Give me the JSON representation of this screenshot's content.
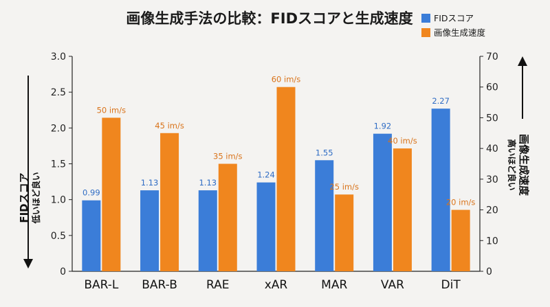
{
  "chart_data": {
    "type": "bar",
    "title": "画像生成手法の比較：FIDスコアと生成速度",
    "categories": [
      "BAR-L",
      "BAR-B",
      "RAE",
      "xAR",
      "MAR",
      "VAR",
      "DiT"
    ],
    "series": [
      {
        "name": "FIDスコア",
        "axis": "left",
        "color": "#3b7dd8",
        "values": [
          0.99,
          1.13,
          1.13,
          1.24,
          1.55,
          1.92,
          2.27
        ],
        "labels": [
          "0.99",
          "1.13",
          "1.13",
          "1.24",
          "1.55",
          "1.92",
          "2.27"
        ]
      },
      {
        "name": "画像生成速度",
        "axis": "right",
        "color": "#f0861e",
        "values": [
          50,
          45,
          35,
          60,
          25,
          40,
          20
        ],
        "labels": [
          "50 im/s",
          "45 im/s",
          "35 im/s",
          "60 im/s",
          "25 im/s",
          "40 im/s",
          "20 im/s"
        ]
      }
    ],
    "y_left": {
      "label": "FIDスコア",
      "sublabel": "低いほど良い",
      "ylim": [
        0,
        3.0
      ],
      "ticks": [
        "0",
        "0.5",
        "1.0",
        "1.5",
        "2.0",
        "2.5",
        "3.0"
      ]
    },
    "y_right": {
      "label": "画像生成速度",
      "sublabel": "高いほど良い",
      "ylim": [
        0,
        70
      ],
      "ticks": [
        "0",
        "10",
        "20",
        "30",
        "40",
        "50",
        "60",
        "70"
      ]
    },
    "grid": false,
    "legend": "top-right"
  }
}
